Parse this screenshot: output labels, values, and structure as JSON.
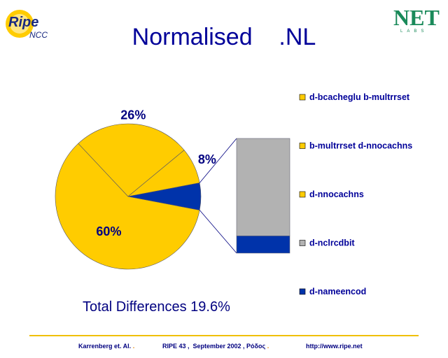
{
  "slide": {
    "title": "Normalised    .NL",
    "total_text": "Total Differences 19.6%",
    "footer": {
      "left": "Karrenberg et. Al.",
      "center": "RIPE 43 ,  September 2002 , Ρόδος",
      "right": "http://www.ripe.net",
      "separator": "."
    },
    "logo_left": {
      "text_main": "Ripe",
      "text_sub": "NCC"
    },
    "logo_right": {
      "text_main": "NET",
      "text_sub": "LABS"
    }
  },
  "colors": {
    "title": "#000099",
    "yellow": "#FFCC00",
    "gray": "#B2B2B2",
    "blue": "#0033AA",
    "footer_rule": "#F0C000"
  },
  "chart_data": {
    "type": "pie",
    "title": "",
    "slices": [
      {
        "label": "d-bcacheglu b-multrrset",
        "value": 60,
        "display": "60%",
        "color": "#FFCC00"
      },
      {
        "label": "b-multrrset d-nnocachns",
        "value": 26,
        "display": "26%",
        "color": "#FFCC00"
      },
      {
        "label": "d-nnocachns",
        "value": 8,
        "display": "8%",
        "color": "#FFCC00"
      },
      {
        "label": "d-nameencod",
        "value": 6,
        "display": "",
        "color": "#0033AA"
      }
    ],
    "breakout_bar": {
      "of_slice": "d-nameencod",
      "segments": [
        {
          "label": "d-nclrcdbit",
          "value": 85,
          "color": "#B2B2B2"
        },
        {
          "label": "d-nameencod",
          "value": 15,
          "color": "#0033AA"
        }
      ]
    },
    "legend": [
      {
        "label": "d-bcacheglu b-multrrset",
        "color": "#FFCC00"
      },
      {
        "label": "b-multrrset d-nnocachns",
        "color": "#FFCC00"
      },
      {
        "label": "d-nnocachns",
        "color": "#FFCC00"
      },
      {
        "label": "d-nclrcdbit",
        "color": "#B2B2B2"
      },
      {
        "label": "d-nameencod",
        "color": "#0033AA"
      }
    ],
    "legend_position": "right"
  }
}
